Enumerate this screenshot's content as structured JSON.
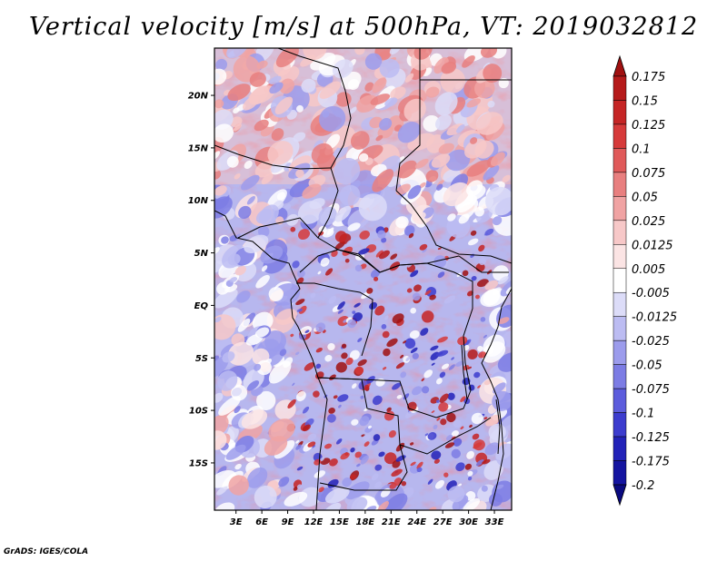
{
  "title": "Vertical velocity [m/s] at 500hPa, VT: 2019032812",
  "credit": "GrADS: IGES/COLA",
  "map": {
    "lat_labels": [
      "20N",
      "15N",
      "10N",
      "5N",
      "EQ",
      "5S",
      "10S",
      "15S"
    ],
    "lon_labels": [
      "3E",
      "6E",
      "9E",
      "12E",
      "15E",
      "18E",
      "21E",
      "24E",
      "27E",
      "30E",
      "33E"
    ],
    "lat_range": [
      -19.5,
      24.5
    ],
    "lon_range": [
      0.5,
      35.0
    ]
  },
  "colorbar": {
    "labels": [
      "0.175",
      "0.15",
      "0.125",
      "0.1",
      "0.075",
      "0.05",
      "0.025",
      "0.0125",
      "0.005",
      "-0.005",
      "-0.0125",
      "-0.025",
      "-0.05",
      "-0.075",
      "-0.1",
      "-0.125",
      "-0.175",
      "-0.2"
    ],
    "colors": [
      "#a01010",
      "#b51a1a",
      "#c52525",
      "#d63a3a",
      "#e05a5a",
      "#e87f7f",
      "#f0a3a3",
      "#f7c8c8",
      "#fbe4e4",
      "#ffffff",
      "#dcdcf8",
      "#bcbcf2",
      "#9c9cec",
      "#7c7ce4",
      "#5c5cdc",
      "#3c3cce",
      "#2222b8",
      "#1414a0",
      "#0a0a80"
    ]
  }
}
